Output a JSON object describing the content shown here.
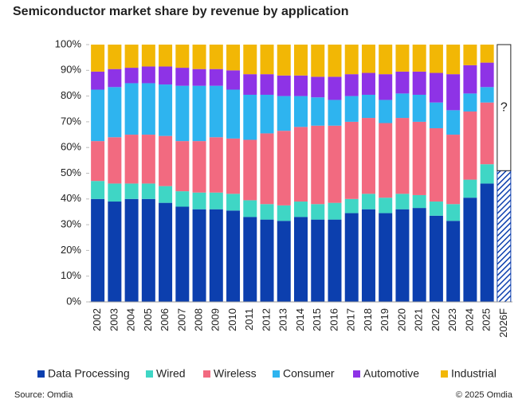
{
  "chart_data": {
    "type": "stacked_bar",
    "title": "Semiconductor market share by revenue by application",
    "categories": [
      "2002",
      "2003",
      "2004",
      "2005",
      "2006",
      "2007",
      "2008",
      "2009",
      "2010",
      "2011",
      "2012",
      "2013",
      "2014",
      "2015",
      "2016",
      "2017",
      "2018",
      "2019",
      "2020",
      "2021",
      "2022",
      "2023",
      "2024",
      "2025",
      "2026F"
    ],
    "series": [
      {
        "name": "Data Processing",
        "color": "#0c3fae",
        "values": [
          40,
          39,
          40,
          40,
          38.5,
          37,
          36,
          36,
          35.5,
          33,
          32,
          31.5,
          33,
          32,
          32,
          34.5,
          36,
          34.5,
          36,
          36.5,
          33.5,
          31.5,
          40.5,
          46,
          51
        ]
      },
      {
        "name": "Wired",
        "color": "#3fd6c5",
        "values": [
          7,
          7,
          6,
          6,
          6.5,
          6,
          6.5,
          6.5,
          6.5,
          6.5,
          6,
          6,
          6,
          6,
          6.5,
          5.5,
          6,
          6,
          6,
          5,
          5.5,
          6.5,
          7,
          7.5,
          null
        ]
      },
      {
        "name": "Wireless",
        "color": "#f26a80",
        "values": [
          15.5,
          18,
          19,
          19,
          19.5,
          19.5,
          20,
          21.5,
          21.5,
          23.5,
          27.5,
          29,
          29,
          30.5,
          30,
          30,
          29.5,
          29,
          29.5,
          28.5,
          28.5,
          27,
          26.5,
          24,
          null
        ]
      },
      {
        "name": "Consumer",
        "color": "#2eb4ef",
        "values": [
          20,
          19.5,
          20,
          20,
          20,
          21.5,
          21.5,
          20,
          19,
          17.5,
          15,
          13.5,
          12,
          11,
          10,
          10,
          9,
          9,
          9.5,
          10.5,
          10,
          9.5,
          7,
          6,
          null
        ]
      },
      {
        "name": "Automotive",
        "color": "#8e33e6",
        "values": [
          7,
          7,
          6,
          6.5,
          7,
          7,
          6.5,
          6.5,
          7.5,
          8,
          8,
          8,
          8,
          8,
          9,
          8.5,
          8.5,
          10,
          8.5,
          9,
          11.5,
          14,
          11,
          9.5,
          null
        ]
      },
      {
        "name": "Industrial",
        "color": "#f2b705",
        "values": [
          10.5,
          9.5,
          9,
          8.5,
          8.5,
          9,
          9.5,
          9.5,
          10,
          11.5,
          11.5,
          12,
          12,
          12.5,
          12.5,
          11.5,
          11,
          11.5,
          10.5,
          10.5,
          11,
          11.5,
          8,
          7,
          null
        ]
      }
    ],
    "ylim": [
      0,
      100
    ],
    "yticks": [
      {
        "value": 0,
        "label": "0%"
      },
      {
        "value": 10,
        "label": "10%"
      },
      {
        "value": 20,
        "label": "20%"
      },
      {
        "value": 30,
        "label": "30%"
      },
      {
        "value": 40,
        "label": "40%"
      },
      {
        "value": 50,
        "label": "50%"
      },
      {
        "value": 60,
        "label": "60%"
      },
      {
        "value": 70,
        "label": "70%"
      },
      {
        "value": 80,
        "label": "80%"
      },
      {
        "value": 90,
        "label": "90%"
      },
      {
        "value": 100,
        "label": "100%"
      }
    ],
    "annotation": "?",
    "source": "Source: Omdia",
    "copyright": "© 2025 Omdia",
    "legend": "bottom"
  }
}
